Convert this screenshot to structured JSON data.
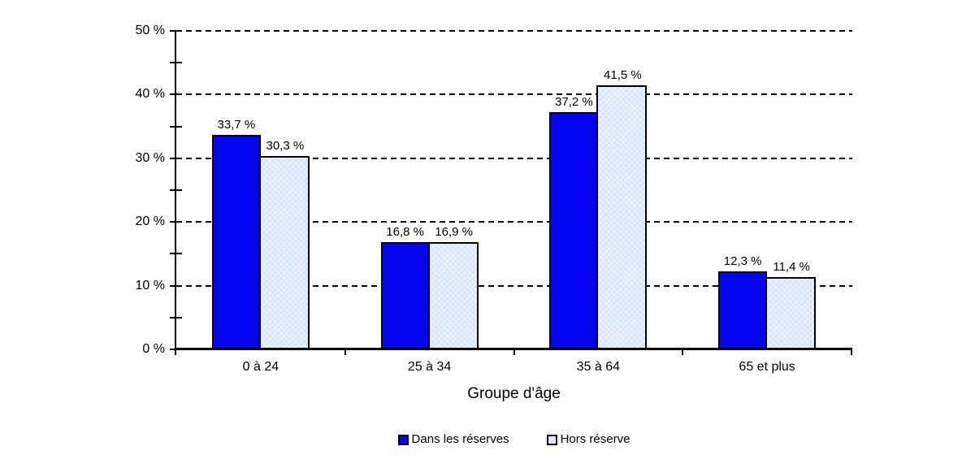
{
  "chart_data": {
    "type": "bar",
    "title": "",
    "xlabel": "Groupe d'âge",
    "ylabel": "",
    "categories": [
      "0 à 24",
      "25 à 34",
      "35 à 64",
      "65 et plus"
    ],
    "series": [
      {
        "name": "Dans les réserves",
        "color": "#0404EE",
        "values": [
          33.7,
          16.8,
          37.2,
          12.3
        ],
        "value_labels": [
          "33,7 %",
          "16,8 %",
          "37,2 %",
          "12,3 %"
        ]
      },
      {
        "name": "Hors réserve",
        "color": "#D7E6F9",
        "values": [
          30.3,
          16.9,
          41.5,
          11.4
        ],
        "value_labels": [
          "30,3 %",
          "16,9 %",
          "41,5 %",
          "11,4 %"
        ]
      }
    ],
    "ylim": [
      0,
      50
    ],
    "ytick_major": 10,
    "ytick_minor": 5,
    "ytick_labels": [
      "0 %",
      "10 %",
      "20 %",
      "30 %",
      "40 %",
      "50 %"
    ],
    "grid": {
      "horizontal": true,
      "style": "dashed",
      "color": "#000000"
    },
    "axis_color": "#000000",
    "legend_position": "bottom"
  }
}
